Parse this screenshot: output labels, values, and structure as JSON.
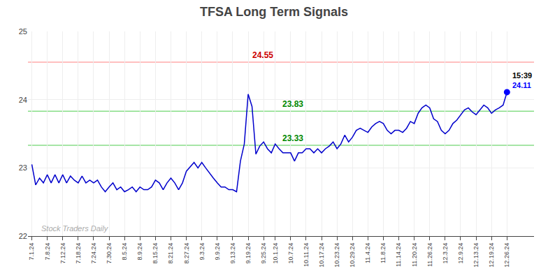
{
  "chart_data": {
    "type": "line",
    "title": "TFSA Long Term Signals",
    "categories": [
      "7.1.24",
      null,
      null,
      null,
      "7.8.24",
      null,
      null,
      null,
      "7.12.24",
      null,
      null,
      null,
      "7.18.24",
      null,
      null,
      null,
      "7.24.24",
      null,
      null,
      null,
      "7.30.24",
      null,
      null,
      null,
      "8.5.24",
      null,
      null,
      null,
      "8.9.24",
      null,
      null,
      null,
      "8.15.24",
      null,
      null,
      null,
      "8.21.24",
      null,
      null,
      null,
      "8.27.24",
      null,
      null,
      null,
      "9.3.24",
      null,
      null,
      null,
      "9.9.24",
      null,
      null,
      null,
      "9.13.24",
      null,
      null,
      null,
      "9.19.24",
      null,
      null,
      null,
      "9.25.24",
      null,
      null,
      "10.1.24",
      null,
      null,
      null,
      "10.7.24",
      null,
      null,
      null,
      "10.11.24",
      null,
      null,
      null,
      "10.17.24",
      null,
      null,
      null,
      "10.23.24",
      null,
      null,
      null,
      "10.29.24",
      null,
      null,
      null,
      "11.4.24",
      null,
      null,
      null,
      "11.8.24",
      null,
      null,
      null,
      "11.14.24",
      null,
      null,
      null,
      "11.20.24",
      null,
      null,
      null,
      "11.26.24",
      null,
      null,
      null,
      "12.3.24",
      null,
      null,
      null,
      "12.9.24",
      null,
      null,
      null,
      "12.13.24",
      null,
      null,
      null,
      "12.19.24",
      null,
      null,
      null,
      "12.26.24"
    ],
    "values": [
      23.05,
      22.75,
      22.85,
      22.78,
      22.9,
      22.78,
      22.9,
      22.78,
      22.9,
      22.78,
      22.88,
      22.82,
      22.78,
      22.88,
      22.78,
      22.82,
      22.78,
      22.82,
      22.72,
      22.65,
      22.72,
      22.78,
      22.68,
      22.72,
      22.65,
      22.68,
      22.72,
      22.65,
      22.72,
      22.68,
      22.68,
      22.72,
      22.82,
      22.78,
      22.68,
      22.78,
      22.85,
      22.78,
      22.68,
      22.78,
      22.95,
      23.02,
      23.08,
      23.0,
      23.08,
      23.0,
      22.92,
      22.85,
      22.78,
      22.72,
      22.72,
      22.68,
      22.68,
      22.65,
      23.1,
      23.35,
      24.08,
      23.9,
      23.2,
      23.32,
      23.38,
      23.28,
      23.22,
      23.35,
      23.28,
      23.22,
      23.22,
      23.22,
      23.1,
      23.22,
      23.22,
      23.28,
      23.28,
      23.22,
      23.28,
      23.22,
      23.28,
      23.32,
      23.38,
      23.28,
      23.35,
      23.48,
      23.38,
      23.45,
      23.55,
      23.58,
      23.55,
      23.52,
      23.6,
      23.65,
      23.68,
      23.65,
      23.55,
      23.5,
      23.55,
      23.55,
      23.52,
      23.58,
      23.68,
      23.65,
      23.8,
      23.88,
      23.92,
      23.88,
      23.72,
      23.68,
      23.55,
      23.5,
      23.55,
      23.65,
      23.7,
      23.78,
      23.85,
      23.88,
      23.82,
      23.78,
      23.85,
      23.92,
      23.88,
      23.8,
      23.85,
      23.88,
      23.92,
      24.11
    ],
    "color": "#0000cc",
    "ylim": [
      22,
      25
    ],
    "yticks": [
      22,
      23,
      24,
      25
    ],
    "grid": true,
    "reference_lines": [
      {
        "value": 24.55,
        "label": "24.55",
        "color": "#ffaaaa",
        "label_color": "#cc0000"
      },
      {
        "value": 23.83,
        "label": "23.83",
        "color": "#88dd88",
        "label_color": "#008800"
      },
      {
        "value": 23.33,
        "label": "23.33",
        "color": "#88dd88",
        "label_color": "#008800"
      }
    ],
    "end_point": {
      "value": 24.11,
      "color": "blue",
      "label": "24.11",
      "label_color": "blue",
      "time": "15:39",
      "time_color": "black"
    },
    "watermark": {
      "text": "Stock Traders Daily",
      "color": "#aaaaaa"
    }
  }
}
